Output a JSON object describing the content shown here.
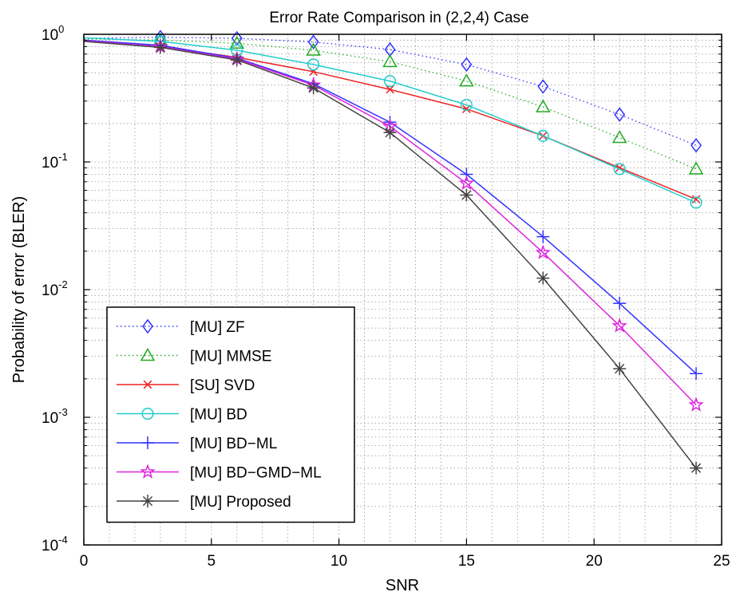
{
  "chart_data": {
    "type": "line",
    "title": "Error Rate Comparison in (2,2,4) Case",
    "xlabel": "SNR",
    "ylabel": "Probability of error (BLER)",
    "xlim": [
      0,
      25
    ],
    "ylim": [
      0.0001,
      1
    ],
    "yscale": "log",
    "grid": "major-and-minor, dotted",
    "legend_position": "lower-left",
    "x_ticks": [
      "0",
      "5",
      "10",
      "15",
      "20",
      "25"
    ],
    "y_ticks": [
      {
        "value": 1,
        "mantissa": "10",
        "exp": "0"
      },
      {
        "value": 0.1,
        "mantissa": "10",
        "exp": "-1"
      },
      {
        "value": 0.01,
        "mantissa": "10",
        "exp": "-2"
      },
      {
        "value": 0.001,
        "mantissa": "10",
        "exp": "-3"
      },
      {
        "value": 0.0001,
        "mantissa": "10",
        "exp": "-4"
      }
    ],
    "series": [
      {
        "name": "[MU] ZF",
        "color": "#3333ff",
        "line": "dotted",
        "marker": "diamond",
        "x": [
          0,
          3,
          6,
          9,
          12,
          15,
          18,
          21,
          24
        ],
        "y": [
          0.93,
          0.95,
          0.93,
          0.87,
          0.76,
          0.58,
          0.39,
          0.235,
          0.135
        ]
      },
      {
        "name": "[MU] MMSE",
        "color": "#22aa22",
        "line": "dotted",
        "marker": "triangle",
        "x": [
          0,
          3,
          6,
          9,
          12,
          15,
          18,
          21,
          24
        ],
        "y": [
          0.92,
          0.9,
          0.85,
          0.75,
          0.61,
          0.43,
          0.27,
          0.155,
          0.088
        ]
      },
      {
        "name": "[SU] SVD",
        "color": "#ee2222",
        "line": "solid",
        "marker": "x",
        "x": [
          0,
          3,
          6,
          9,
          12,
          15,
          18,
          21,
          24
        ],
        "y": [
          0.89,
          0.8,
          0.66,
          0.51,
          0.37,
          0.26,
          0.16,
          0.09,
          0.051
        ]
      },
      {
        "name": "[MU] BD",
        "color": "#22cccc",
        "line": "solid",
        "marker": "circle",
        "x": [
          0,
          3,
          6,
          9,
          12,
          15,
          18,
          21,
          24
        ],
        "y": [
          0.94,
          0.88,
          0.75,
          0.58,
          0.43,
          0.28,
          0.16,
          0.088,
          0.048
        ]
      },
      {
        "name": "[MU] BD−ML",
        "color": "#3333ff",
        "line": "solid",
        "marker": "plus",
        "x": [
          0,
          3,
          6,
          9,
          12,
          15,
          18,
          21,
          24
        ],
        "y": [
          0.9,
          0.82,
          0.65,
          0.41,
          0.205,
          0.08,
          0.026,
          0.0078,
          0.0022
        ]
      },
      {
        "name": "[MU] BD−GMD−ML",
        "color": "#dd22dd",
        "line": "solid",
        "marker": "star",
        "x": [
          0,
          3,
          6,
          9,
          12,
          15,
          18,
          21,
          24
        ],
        "y": [
          0.89,
          0.8,
          0.64,
          0.4,
          0.19,
          0.068,
          0.0195,
          0.0052,
          0.00125
        ]
      },
      {
        "name": "[MU] Proposed",
        "color": "#444444",
        "line": "solid",
        "marker": "asterisk",
        "x": [
          0,
          3,
          6,
          9,
          12,
          15,
          18,
          21,
          24
        ],
        "y": [
          0.88,
          0.79,
          0.63,
          0.38,
          0.17,
          0.055,
          0.0123,
          0.0024,
          0.0004
        ]
      }
    ]
  }
}
